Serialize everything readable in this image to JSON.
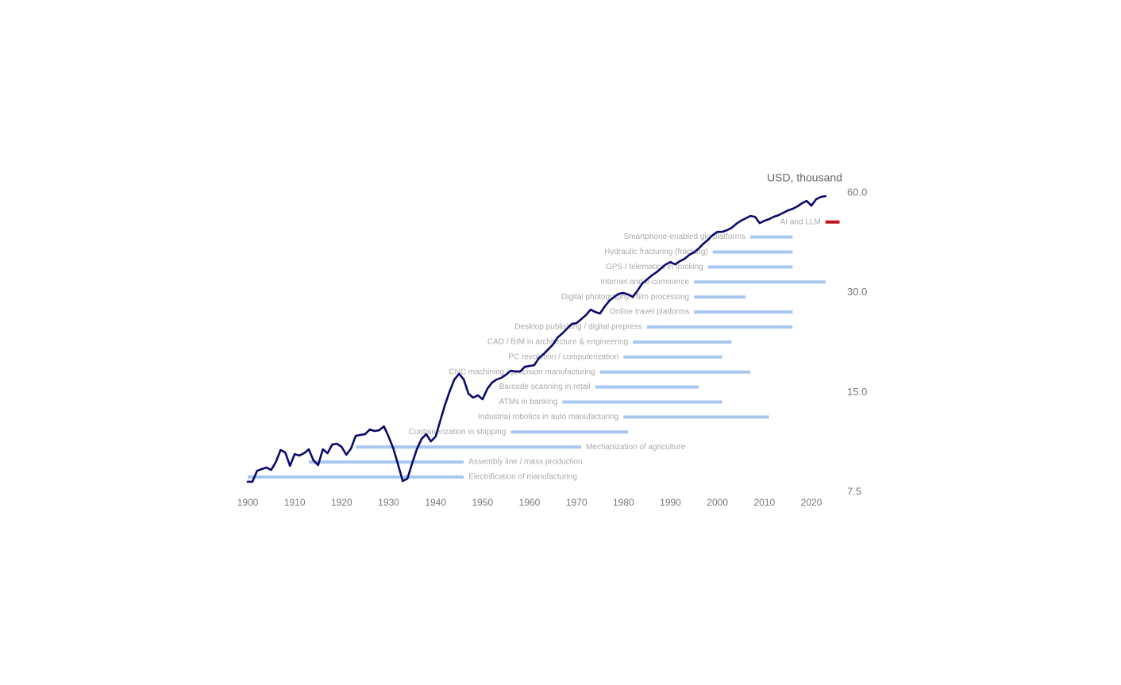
{
  "chart_data": {
    "type": "line",
    "y_axis_label": "USD, thousand",
    "log_y": true,
    "xlim": [
      1900,
      2026
    ],
    "xticks": [
      1900,
      1910,
      1920,
      1930,
      1940,
      1950,
      1960,
      1970,
      1980,
      1990,
      2000,
      2010,
      2020
    ],
    "ylim": [
      7.5,
      60
    ],
    "yticks": [
      {
        "value": 60,
        "label": "60.0"
      },
      {
        "value": 30,
        "label": "30.0"
      },
      {
        "value": 15,
        "label": "15.0"
      },
      7.5
    ],
    "x": [
      1900,
      1901,
      1902,
      1903,
      1904,
      1905,
      1906,
      1907,
      1908,
      1909,
      1910,
      1911,
      1912,
      1913,
      1914,
      1915,
      1916,
      1917,
      1918,
      1919,
      1920,
      1921,
      1922,
      1923,
      1924,
      1925,
      1926,
      1927,
      1928,
      1929,
      1930,
      1931,
      1932,
      1933,
      1934,
      1935,
      1936,
      1937,
      1938,
      1939,
      1940,
      1941,
      1942,
      1943,
      1944,
      1945,
      1946,
      1947,
      1948,
      1949,
      1950,
      1951,
      1952,
      1953,
      1954,
      1955,
      1956,
      1957,
      1958,
      1959,
      1960,
      1961,
      1962,
      1963,
      1964,
      1965,
      1966,
      1967,
      1968,
      1969,
      1970,
      1971,
      1972,
      1973,
      1974,
      1975,
      1976,
      1977,
      1978,
      1979,
      1980,
      1981,
      1982,
      1983,
      1984,
      1985,
      1986,
      1987,
      1988,
      1989,
      1990,
      1991,
      1992,
      1993,
      1994,
      1995,
      1996,
      1997,
      1998,
      1999,
      2000,
      2001,
      2002,
      2003,
      2004,
      2005,
      2006,
      2007,
      2008,
      2009,
      2010,
      2011,
      2012,
      2013,
      2014,
      2015,
      2016,
      2017,
      2018,
      2019,
      2020,
      2021,
      2022,
      2023
    ],
    "series": [
      {
        "color": "#0a0a6b",
        "values": [
          8.06,
          8.06,
          8.7,
          8.8,
          8.9,
          8.75,
          9.25,
          10.05,
          9.88,
          9.0,
          9.77,
          9.67,
          9.83,
          10.1,
          9.35,
          9.05,
          10.1,
          9.83,
          10.44,
          10.5,
          10.27,
          9.72,
          10.16,
          11.09,
          11.16,
          11.22,
          11.59,
          11.47,
          11.53,
          11.85,
          11.03,
          10.16,
          9.1,
          8.1,
          8.24,
          9.15,
          10.1,
          10.85,
          11.22,
          10.67,
          11.03,
          12.32,
          13.76,
          15.11,
          16.41,
          17.06,
          16.41,
          14.86,
          14.46,
          14.7,
          14.3,
          15.36,
          16.05,
          16.41,
          16.59,
          16.96,
          17.44,
          17.34,
          17.34,
          17.92,
          18.02,
          18.12,
          19.04,
          19.58,
          20.23,
          20.92,
          21.98,
          22.6,
          23.36,
          24.14,
          24.27,
          24.95,
          25.65,
          26.66,
          26.22,
          25.94,
          27.25,
          28.33,
          29.12,
          29.77,
          29.93,
          29.61,
          29.12,
          30.43,
          31.98,
          32.87,
          33.79,
          34.55,
          35.51,
          36.5,
          37.11,
          36.5,
          37.32,
          37.94,
          39.0,
          39.65,
          40.76,
          42.13,
          43.31,
          44.76,
          45.76,
          45.76,
          46.27,
          47.05,
          48.36,
          49.44,
          50.26,
          51.1,
          50.82,
          48.62,
          49.44,
          49.99,
          50.82,
          51.38,
          52.24,
          53.11,
          53.7,
          54.59,
          55.82,
          56.74,
          54.9,
          57.38,
          58.33,
          58.65
        ]
      }
    ],
    "adoption_bars": [
      {
        "label": "Electrification of manufacturing",
        "start": 1900,
        "end": 1946,
        "color": "#a9c8ef",
        "label_position": "right"
      },
      {
        "label": "Assembly line / mass production",
        "start": 1913,
        "end": 1946,
        "color": "#a9c8ef",
        "label_position": "right"
      },
      {
        "label": "Mechanization of agriculture",
        "start": 1923,
        "end": 1971,
        "color": "#a9c8ef",
        "label_position": "right"
      },
      {
        "label": "Containerization in shipping",
        "start": 1956,
        "end": 1981,
        "color": "#a9c8ef",
        "label_position": "left"
      },
      {
        "label": "Industrial robotics in auto manufacturing",
        "start": 1980,
        "end": 2011,
        "color": "#a9c8ef",
        "label_position": "left"
      },
      {
        "label": "ATMs in banking",
        "start": 1967,
        "end": 2001,
        "color": "#a9c8ef",
        "label_position": "left"
      },
      {
        "label": "Barcode scanning in retail",
        "start": 1974,
        "end": 1996,
        "color": "#a9c8ef",
        "label_position": "left"
      },
      {
        "label": "CNC machining / precision manufacturing",
        "start": 1975,
        "end": 2007,
        "color": "#a9c8ef",
        "label_position": "left"
      },
      {
        "label": "PC revolution / computerization",
        "start": 1980,
        "end": 2001,
        "color": "#a9c8ef",
        "label_position": "left"
      },
      {
        "label": "CAD / BIM in architecture & engineering",
        "start": 1982,
        "end": 2003,
        "color": "#a9c8ef",
        "label_position": "left"
      },
      {
        "label": "Desktop publishing / digital prepress",
        "start": 1985,
        "end": 2016,
        "color": "#a9c8ef",
        "label_position": "left"
      },
      {
        "label": "Online travel platforms",
        "start": 1995,
        "end": 2016,
        "color": "#a9c8ef",
        "label_position": "left"
      },
      {
        "label": "Digital photography / film processing",
        "start": 1995,
        "end": 2006,
        "color": "#a9c8ef",
        "label_position": "left"
      },
      {
        "label": "Internet and e-commerce",
        "start": 1995,
        "end": 2023,
        "color": "#a9c8ef",
        "label_position": "left"
      },
      {
        "label": "GPS / telematics in trucking",
        "start": 1998,
        "end": 2016,
        "color": "#a9c8ef",
        "label_position": "left"
      },
      {
        "label": "Hydraulic fracturing (fracking)",
        "start": 1999,
        "end": 2016,
        "color": "#a9c8ef",
        "label_position": "left"
      },
      {
        "label": "Smartphone-enabled gig platforms",
        "start": 2007,
        "end": 2016,
        "color": "#a9c8ef",
        "label_position": "left"
      },
      {
        "label": "AI and LLM",
        "start": 2023,
        "end": 2026,
        "color": "#c0141c",
        "label_position": "left"
      }
    ]
  }
}
